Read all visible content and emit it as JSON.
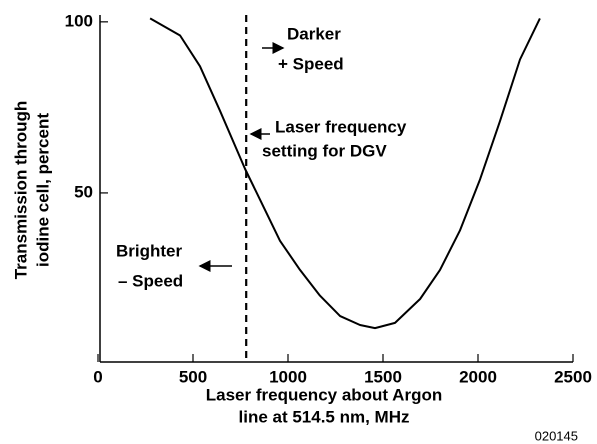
{
  "chart_data": {
    "type": "line",
    "x_label": [
      "Laser frequency about Argon",
      "line at 514.5 nm, MHz"
    ],
    "y_label": [
      "Transmission through",
      "iodine cell, percent"
    ],
    "x": [
      274,
      432,
      537,
      642,
      774,
      853,
      958,
      1063,
      1168,
      1274,
      1379,
      1458,
      1563,
      1695,
      1800,
      1905,
      2011,
      2116,
      2221,
      2326
    ],
    "values": [
      101,
      96,
      87,
      74,
      57,
      48,
      36,
      27.5,
      20,
      14,
      11.4,
      10.5,
      12,
      19,
      27.5,
      39,
      54,
      71,
      89,
      101
    ],
    "color": "#000000",
    "xlim": [
      0,
      2500
    ],
    "xticks": [
      0,
      500,
      1000,
      1500,
      2000,
      2500
    ],
    "ylim": [
      0,
      102
    ],
    "yticks": [
      50,
      100
    ],
    "laser_setting": 780,
    "annotations": {
      "darker": [
        "Darker",
        "+ Speed"
      ],
      "setting": [
        "Laser frequency",
        "setting for DGV"
      ],
      "brighter": [
        "Brighter",
        "– Speed"
      ]
    },
    "figure_id": "020145"
  }
}
